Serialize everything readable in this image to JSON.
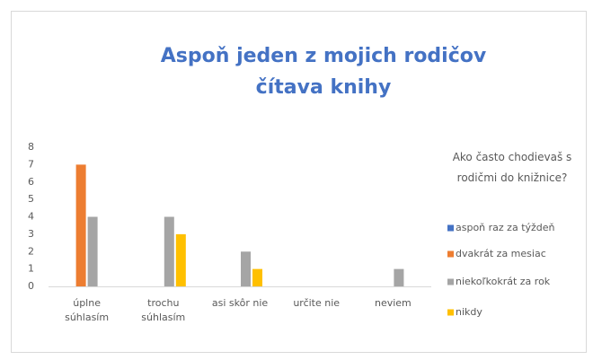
{
  "chart_data": {
    "type": "bar",
    "title": [
      "Aspoň jeden z mojich rodičov",
      "čítava knihy"
    ],
    "legend_title": "Ako často chodievaš s rodičmi do knižnice?",
    "categories": [
      "úplne súhlasím",
      "trochu súhlasím",
      "asi skôr nie",
      "určite nie",
      "neviem"
    ],
    "series": [
      {
        "name": "aspoň raz za týždeň",
        "color": "#4472c4",
        "values": [
          0,
          0,
          0,
          0,
          0
        ]
      },
      {
        "name": "dvakrát za mesiac",
        "color": "#ed7d31",
        "values": [
          7,
          0,
          0,
          0,
          0
        ]
      },
      {
        "name": "niekoľkokrát za rok",
        "color": "#a5a5a5",
        "values": [
          4,
          4,
          2,
          0,
          1
        ]
      },
      {
        "name": "nikdy",
        "color": "#ffc000",
        "values": [
          0,
          3,
          1,
          0,
          0
        ]
      }
    ],
    "ylim": [
      0,
      8
    ],
    "yticks": [
      0,
      1,
      2,
      3,
      4,
      5,
      6,
      7,
      8
    ],
    "grid": false,
    "legend": "right"
  }
}
